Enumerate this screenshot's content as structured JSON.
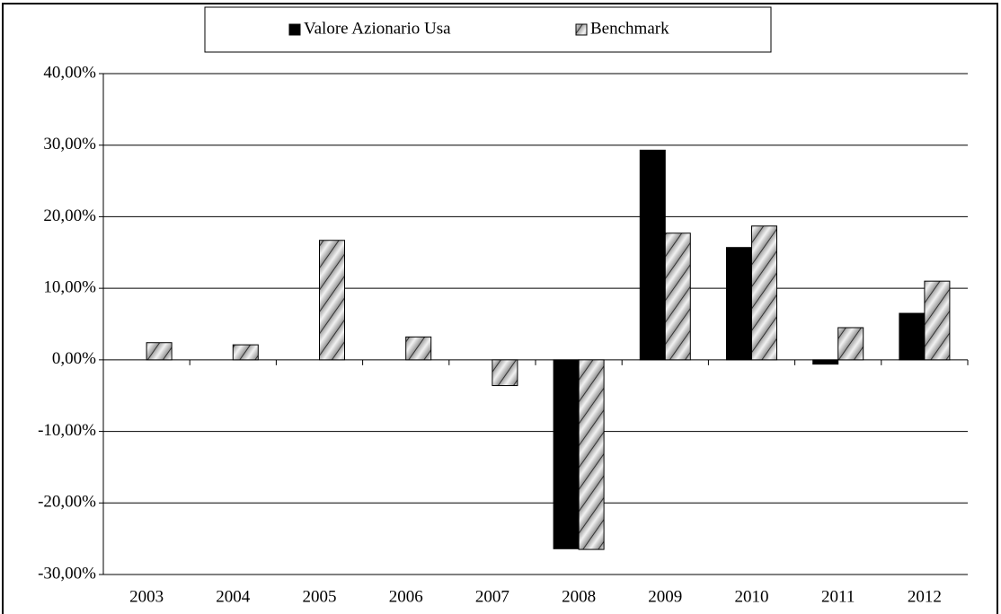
{
  "chart_data": {
    "type": "bar",
    "categories": [
      "2003",
      "2004",
      "2005",
      "2006",
      "2007",
      "2008",
      "2009",
      "2010",
      "2011",
      "2012"
    ],
    "series": [
      {
        "name": "Valore Azionario Usa",
        "color": "#000000",
        "values": [
          null,
          null,
          null,
          null,
          null,
          -26.4,
          29.3,
          15.7,
          -0.6,
          6.5
        ]
      },
      {
        "name": "Benchmark",
        "color": "#c8c8c8",
        "hatch": true,
        "values": [
          2.4,
          2.1,
          16.7,
          3.2,
          -3.6,
          -26.5,
          17.7,
          18.7,
          4.5,
          11.0
        ]
      }
    ],
    "ylim": [
      -30,
      40
    ],
    "yticks": [
      {
        "value": -30,
        "label": "-30,00%"
      },
      {
        "value": -20,
        "label": "-20,00%"
      },
      {
        "value": -10,
        "label": "-10,00%"
      },
      {
        "value": 0,
        "label": "0,00%"
      },
      {
        "value": 10,
        "label": "10,00%"
      },
      {
        "value": 20,
        "label": "20,00%"
      },
      {
        "value": 30,
        "label": "30,00%"
      },
      {
        "value": 40,
        "label": "40,00%"
      }
    ],
    "grid": true,
    "legend": "top"
  }
}
